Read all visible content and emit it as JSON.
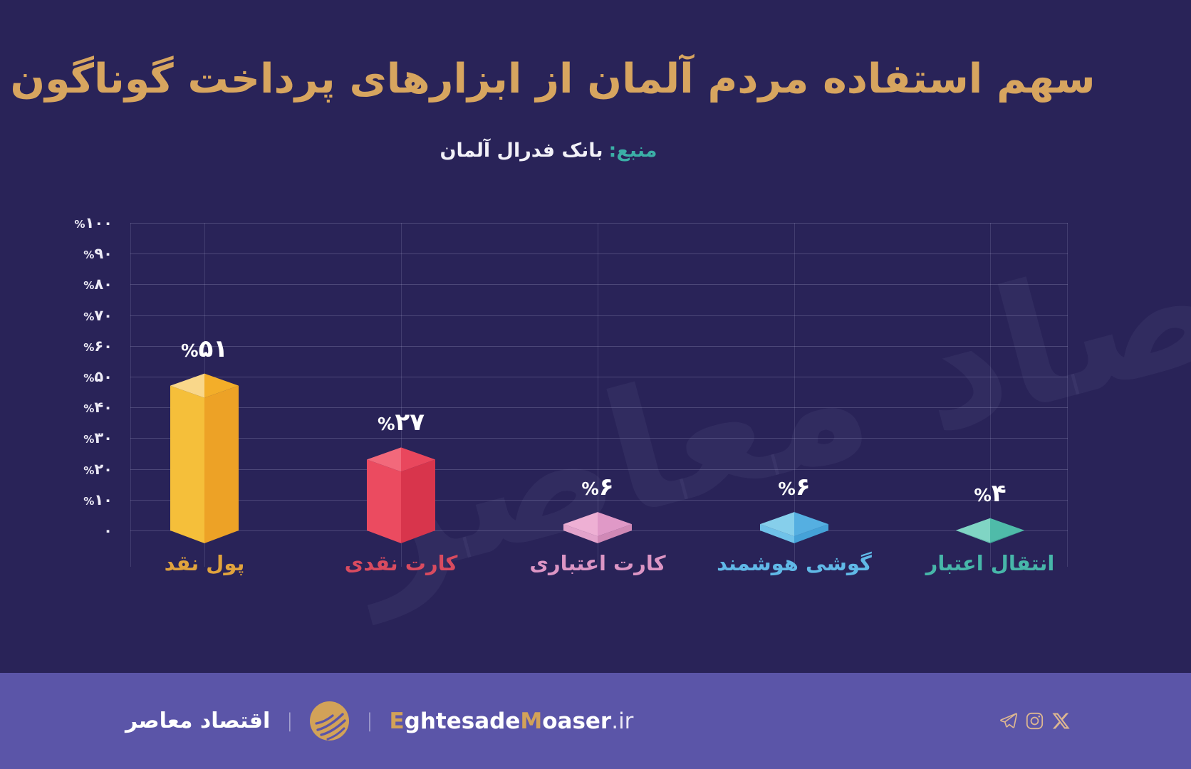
{
  "title": "سهم استفاده مردم آلمان از ابزارهای پرداخت گوناگون",
  "subtitle": {
    "prefix": "منبع:",
    "text": "بانک فدرال آلمان"
  },
  "watermark": "اقتصاد معاصر",
  "chart_data": {
    "type": "bar",
    "style": "isometric-3d-columns",
    "categories": [
      "پول نقد",
      "کارت نقدی",
      "کارت اعتباری",
      "گوشی هوشمند",
      "انتقال اعتبار"
    ],
    "values": [
      51,
      27,
      6,
      6,
      4
    ],
    "value_labels": [
      "%۵۱",
      "%۲۷",
      "%۶",
      "%۶",
      "%۴"
    ],
    "y_ticks": [
      "%۱۰۰",
      "%۹۰",
      "%۸۰",
      "%۷۰",
      "%۶۰",
      "%۵۰",
      "%۴۰",
      "%۳۰",
      "%۲۰",
      "%۱۰",
      "۰"
    ],
    "y_tick_values": [
      100,
      90,
      80,
      70,
      60,
      50,
      40,
      30,
      20,
      10,
      0
    ],
    "ylim": [
      0,
      100
    ],
    "grid": true,
    "legend": "none",
    "bar_colors": [
      {
        "face_left": "#f5bf3a",
        "face_right": "#eda226",
        "top_left": "#f9d78a",
        "top_right": "#f3ae29",
        "label": "#e0a33d"
      },
      {
        "face_left": "#eb4b60",
        "face_right": "#d8354c",
        "top_left": "#f2697b",
        "top_right": "#e9475d",
        "label": "#d94b5f"
      },
      {
        "face_left": "#e3a3cb",
        "face_right": "#d089b6",
        "top_left": "#eeb0d4",
        "top_right": "#e099c7",
        "label": "#dc95c4"
      },
      {
        "face_left": "#70c2e9",
        "face_right": "#45a2d8",
        "top_left": "#86cfeb",
        "top_right": "#55afe1",
        "label": "#60b9e7"
      },
      {
        "face_left": "#66c9b6",
        "face_right": "#3caa97",
        "top_left": "#80d5c4",
        "top_right": "#4fbba9",
        "label": "#47b6a9"
      }
    ]
  },
  "footer": {
    "brand_fa": "اقتصاد معاصر",
    "divider": "|",
    "website": {
      "part1": "E",
      "part2": "ghtesade",
      "part3": "M",
      "part4": "oaser",
      "part5": ".ir"
    },
    "icons": [
      "telegram-icon",
      "instagram-icon",
      "x-icon"
    ]
  },
  "colors": {
    "background": "#292358",
    "footer_background": "#5b55a8",
    "title_gold": "#d7a55f",
    "source_teal": "#3bafa6",
    "axis_text": "#edebf6",
    "value_text": "#ffffff",
    "grid_line": "#8f8cc0",
    "footer_icon_gold": "#dcb691",
    "logo_gold": "#d2a258"
  }
}
